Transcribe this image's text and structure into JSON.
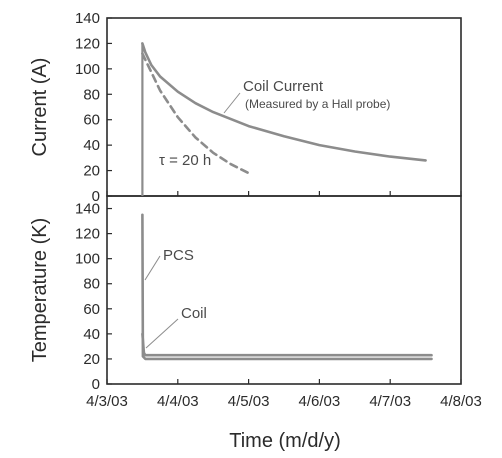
{
  "chart_data": [
    {
      "type": "line",
      "ylabel": "Current (A)",
      "ylim": [
        0,
        140
      ],
      "yticks": [
        "0",
        "20",
        "40",
        "60",
        "80",
        "100",
        "120",
        "140"
      ],
      "xlim": [
        "4/3/03",
        "4/8/03"
      ],
      "grid": false,
      "series": [
        {
          "name": "Coil Current",
          "color": "#8c8c8c",
          "style": "solid",
          "x": [
            "4/3/03 12:00",
            "4/3/03 13:00",
            "4/3/03 15:00",
            "4/3/03 18:00",
            "4/4/03 00:00",
            "4/4/03 06:00",
            "4/4/03 12:00",
            "4/5/03 00:00",
            "4/5/03 12:00",
            "4/6/03 00:00",
            "4/6/03 12:00",
            "4/7/03 00:00",
            "4/7/03 12:00"
          ],
          "values": [
            120,
            113,
            103,
            94,
            82,
            73,
            66,
            55,
            47,
            40,
            35,
            31,
            28
          ]
        },
        {
          "name": "τ = 20 h",
          "color": "#8c8c8c",
          "style": "dashed",
          "x": [
            "4/3/03 12:00",
            "4/3/03 18:00",
            "4/4/03 00:00",
            "4/4/03 06:00",
            "4/4/03 12:00",
            "4/4/03 18:00",
            "4/5/03 00:00"
          ],
          "values": [
            112,
            83,
            62,
            46,
            34,
            25,
            18
          ]
        }
      ],
      "annotations": [
        "Coil Current",
        "(Measured by a Hall probe)",
        "τ = 20 h"
      ]
    },
    {
      "type": "line",
      "xlabel": "Time (m/d/y)",
      "ylabel": "Temperature (K)",
      "ylim": [
        0,
        150
      ],
      "yticks": [
        "0",
        "20",
        "40",
        "60",
        "80",
        "100",
        "120",
        "140"
      ],
      "categories": [
        "4/3/03",
        "4/4/03",
        "4/5/03",
        "4/6/03",
        "4/7/03",
        "4/8/03"
      ],
      "grid": false,
      "series": [
        {
          "name": "PCS",
          "color": "#8c8c8c",
          "x": [
            "4/3/03 12:00",
            "4/3/03 12:10",
            "4/3/03 13:00",
            "4/7/03 14:00"
          ],
          "values": [
            135,
            22,
            20,
            20
          ]
        },
        {
          "name": "Coil",
          "color": "#8c8c8c",
          "x": [
            "4/3/03 12:00",
            "4/3/03 12:30",
            "4/3/03 13:00",
            "4/7/03 14:00"
          ],
          "values": [
            40,
            25,
            23,
            23
          ]
        }
      ],
      "annotations": [
        "PCS",
        "Coil"
      ]
    }
  ]
}
